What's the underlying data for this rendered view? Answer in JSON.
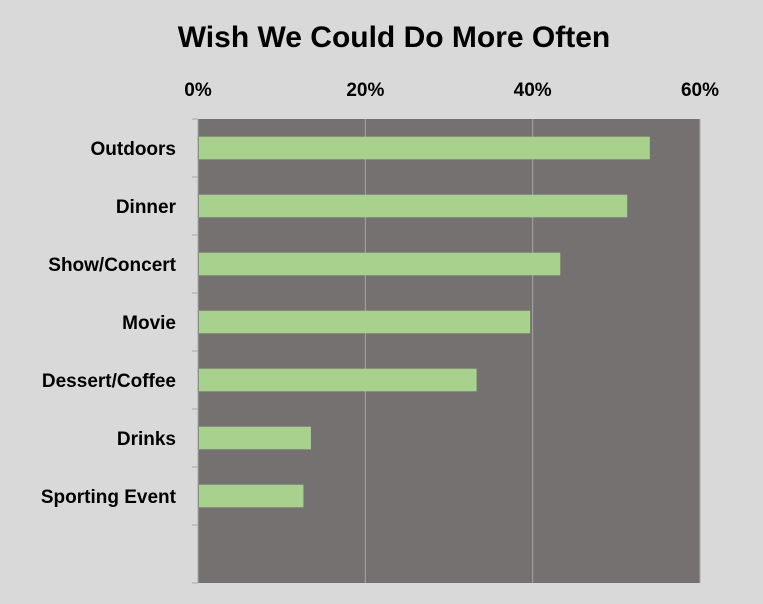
{
  "colors": {
    "background": "#d9d9d9",
    "plot_area": "#767171",
    "bar": "#a9d18e",
    "gridline": "#a6a6a6"
  },
  "chart_data": {
    "type": "bar",
    "orientation": "horizontal",
    "title": "Wish We Could Do More Often",
    "categories": [
      "Outdoors",
      "Dinner",
      "Show/Concert",
      "Movie",
      "Dessert/Coffee",
      "Drinks",
      "Sporting Event"
    ],
    "values": [
      54,
      51.3,
      43.3,
      39.7,
      33.3,
      13.5,
      12.6
    ],
    "x_axis": {
      "position": "top",
      "min": 0,
      "max": 60,
      "step": 20,
      "tick_labels": [
        "0%",
        "20%",
        "40%",
        "60%"
      ]
    },
    "category_slots": 8,
    "gridlines": true,
    "legend": "none"
  }
}
